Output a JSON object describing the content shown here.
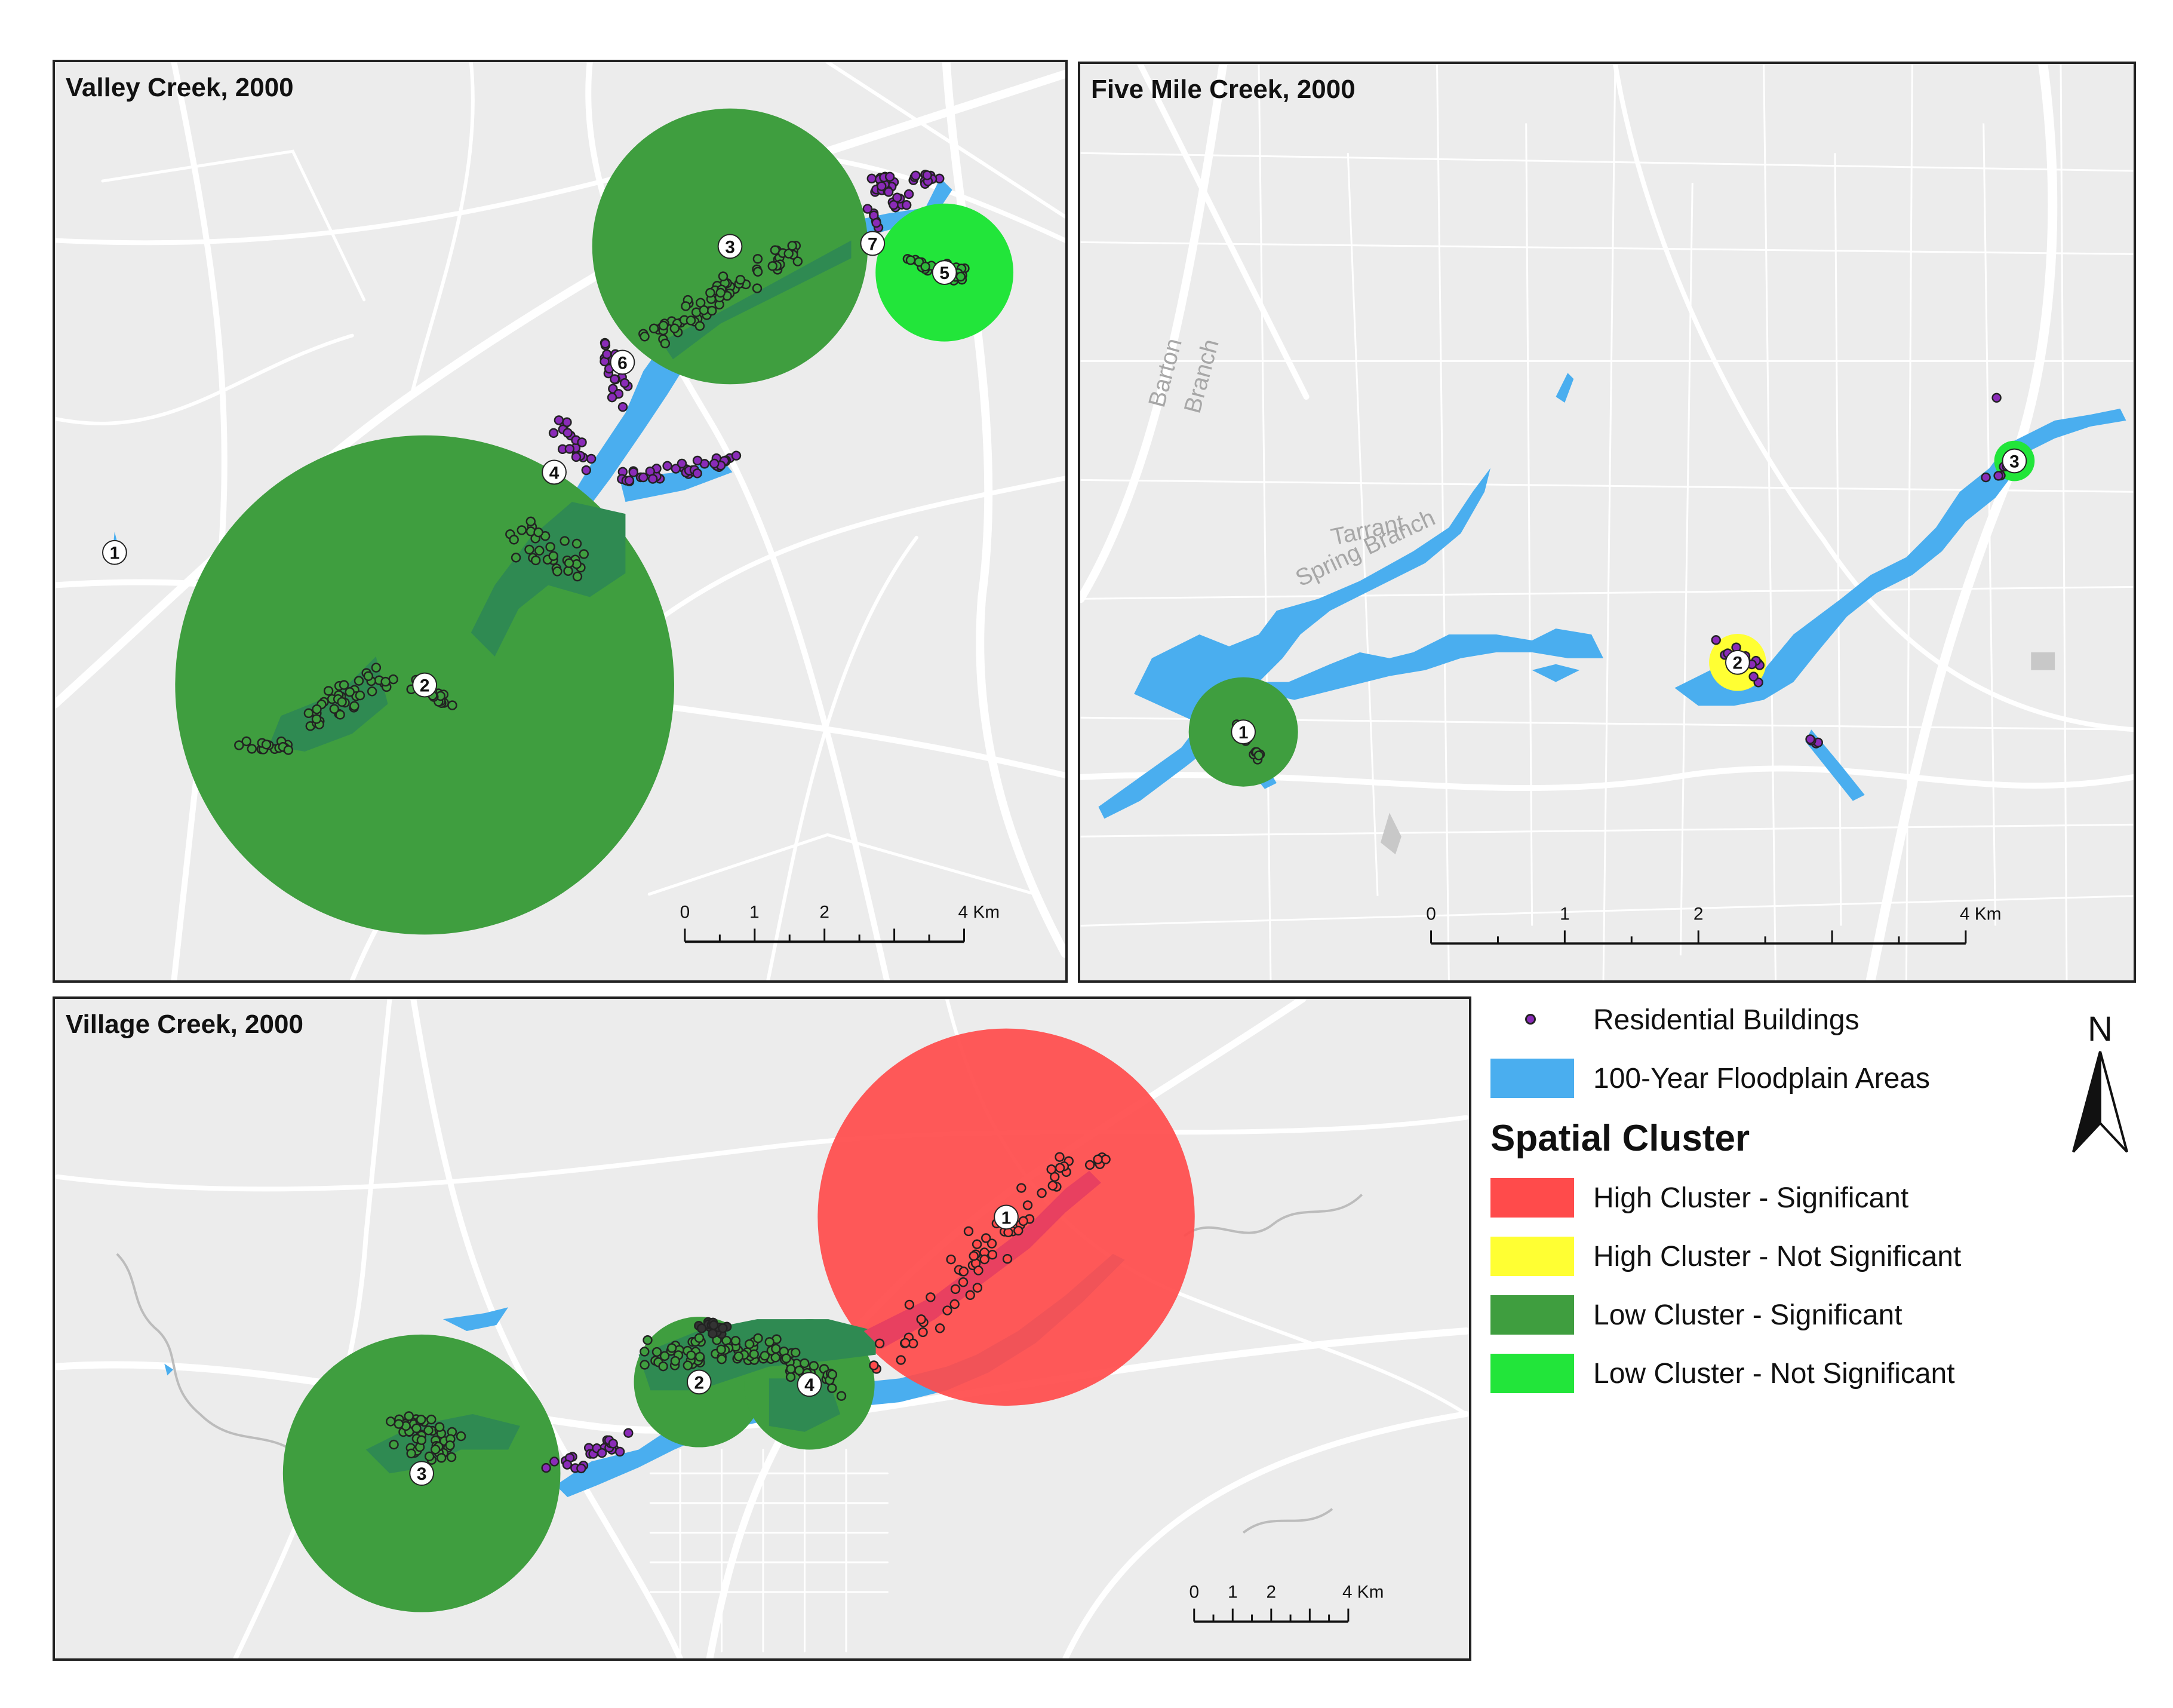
{
  "panels": [
    {
      "id": "valley",
      "title": "Valley Creek, 2000",
      "clusters": [
        {
          "label": "1",
          "type": "high-significant"
        },
        {
          "label": "2",
          "type": "low-significant"
        },
        {
          "label": "3",
          "type": "low-significant"
        },
        {
          "label": "4",
          "type": "low-significant"
        },
        {
          "label": "5",
          "type": "low-not-significant"
        },
        {
          "label": "6",
          "type": "low-significant"
        },
        {
          "label": "7",
          "type": "low-significant"
        }
      ],
      "scale": {
        "ticks": [
          "0",
          "1",
          "2",
          "4 Km"
        ]
      }
    },
    {
      "id": "fivemile",
      "title": "Five Mile Creek, 2000",
      "clusters": [
        {
          "label": "1",
          "type": "low-significant"
        },
        {
          "label": "2",
          "type": "high-not-significant"
        },
        {
          "label": "3",
          "type": "low-not-significant"
        }
      ],
      "map_labels": [
        "Barton",
        "Branch",
        "Tarrant",
        "Spring Branch"
      ],
      "scale": {
        "ticks": [
          "0",
          "1",
          "2",
          "4 Km"
        ]
      }
    },
    {
      "id": "village",
      "title": "Village Creek, 2000",
      "clusters": [
        {
          "label": "1",
          "type": "high-significant"
        },
        {
          "label": "2",
          "type": "low-significant"
        },
        {
          "label": "3",
          "type": "low-significant"
        },
        {
          "label": "4",
          "type": "low-significant"
        }
      ],
      "scale": {
        "ticks": [
          "0",
          "1",
          "2",
          "4 Km"
        ]
      }
    }
  ],
  "legend": {
    "items": [
      {
        "label": "Residential Buildings",
        "symbol": "purple-dot"
      },
      {
        "label": "100-Year Floodplain Areas",
        "color": "#4aaeef"
      }
    ],
    "heading": "Spatial Cluster",
    "cluster_items": [
      {
        "label": "High Cluster - Significant",
        "color": "#ff4b4b"
      },
      {
        "label": "High Cluster - Not Significant",
        "color": "#ffff33"
      },
      {
        "label": "Low Cluster - Significant",
        "color": "#3f9e3f"
      },
      {
        "label": "Low Cluster - Not Significant",
        "color": "#22e53a"
      }
    ]
  },
  "north_arrow": {
    "label": "N"
  },
  "colors": {
    "high_significant": "#ff4b4b",
    "high_not_significant": "#ffff33",
    "low_significant": "#3f9e3f",
    "low_not_significant": "#22e53a",
    "floodplain": "#4aaeef",
    "building": "#8a2bb8",
    "basemap": "#ececec",
    "roads": "#ffffff"
  }
}
